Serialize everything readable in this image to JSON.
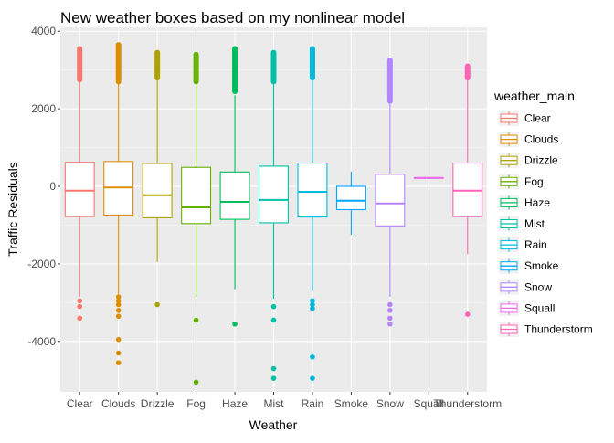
{
  "chart_data": {
    "type": "boxplot",
    "title": "New weather boxes based on my nonlinear model",
    "xlabel": "Weather",
    "ylabel": "Traffic Residuals",
    "ylim": [
      -5300,
      4100
    ],
    "y_ticks": [
      -4000,
      -2000,
      0,
      2000,
      4000
    ],
    "y_tick_labels": [
      "-4000",
      "-2000",
      "0",
      "2000",
      "4000"
    ],
    "grid": true,
    "legend": {
      "title": "weather_main",
      "position": "right"
    },
    "categories": [
      "Clear",
      "Clouds",
      "Drizzle",
      "Fog",
      "Haze",
      "Mist",
      "Rain",
      "Smoke",
      "Snow",
      "Squall",
      "Thunderstorm"
    ],
    "series": [
      {
        "name": "Clear",
        "color": "#F8766D",
        "whisker_low": -2850,
        "q1": -780,
        "median": -110,
        "q3": 620,
        "whisker_high": 2700,
        "outliers_low": [
          -2950,
          -3100,
          -3400
        ],
        "outlier_band_high": [
          2750,
          3550
        ]
      },
      {
        "name": "Clouds",
        "color": "#DB8E00",
        "whisker_low": -2780,
        "q1": -740,
        "median": -30,
        "q3": 640,
        "whisker_high": 2650,
        "outliers_low": [
          -2850,
          -2950,
          -3050,
          -3200,
          -3350,
          -3950,
          -4300,
          -4550
        ],
        "outlier_band_high": [
          2700,
          3650
        ]
      },
      {
        "name": "Drizzle",
        "color": "#AEA200",
        "whisker_low": -1950,
        "q1": -810,
        "median": -230,
        "q3": 590,
        "whisker_high": 2750,
        "outliers_low": [
          -3050
        ],
        "outlier_band_high": [
          2800,
          3450
        ]
      },
      {
        "name": "Fog",
        "color": "#64B200",
        "whisker_low": -2850,
        "q1": -960,
        "median": -540,
        "q3": 490,
        "whisker_high": 2650,
        "outliers_low": [
          -3450,
          -5050
        ],
        "outlier_band_high": [
          2700,
          3400
        ]
      },
      {
        "name": "Haze",
        "color": "#00BD5C",
        "whisker_low": -2650,
        "q1": -850,
        "median": -400,
        "q3": 370,
        "whisker_high": 2350,
        "outliers_low": [
          -3550
        ],
        "outlier_band_high": [
          2450,
          3550
        ]
      },
      {
        "name": "Mist",
        "color": "#00C1A7",
        "whisker_low": -2900,
        "q1": -940,
        "median": -350,
        "q3": 520,
        "whisker_high": 2650,
        "outliers_low": [
          -3100,
          -3450,
          -4700,
          -4950
        ],
        "outlier_band_high": [
          2700,
          3450
        ]
      },
      {
        "name": "Rain",
        "color": "#00BADE",
        "whisker_low": -2700,
        "q1": -790,
        "median": -140,
        "q3": 600,
        "whisker_high": 2750,
        "outliers_low": [
          -2950,
          -3050,
          -3150,
          -4400,
          -4950
        ],
        "outlier_band_high": [
          2800,
          3550
        ]
      },
      {
        "name": "Smoke",
        "color": "#00A6FF",
        "whisker_low": -1250,
        "q1": -600,
        "median": -370,
        "q3": 0,
        "whisker_high": 380,
        "outliers_low": [],
        "outlier_band_high": []
      },
      {
        "name": "Snow",
        "color": "#B385FF",
        "whisker_low": -2850,
        "q1": -1020,
        "median": -440,
        "q3": 310,
        "whisker_high": 2150,
        "outliers_low": [
          -3050,
          -3200,
          -3400,
          -3550
        ],
        "outlier_band_high": [
          2200,
          3250
        ]
      },
      {
        "name": "Squall",
        "color": "#EF67EB",
        "whisker_low": 220,
        "q1": 220,
        "median": 220,
        "q3": 220,
        "whisker_high": 220,
        "outliers_low": [],
        "outlier_band_high": []
      },
      {
        "name": "Thunderstorm",
        "color": "#FF63B6",
        "whisker_low": -1750,
        "q1": -780,
        "median": -110,
        "q3": 600,
        "whisker_high": 2750,
        "outliers_low": [
          -3300
        ],
        "outlier_band_high": [
          2800,
          3100
        ]
      }
    ]
  }
}
